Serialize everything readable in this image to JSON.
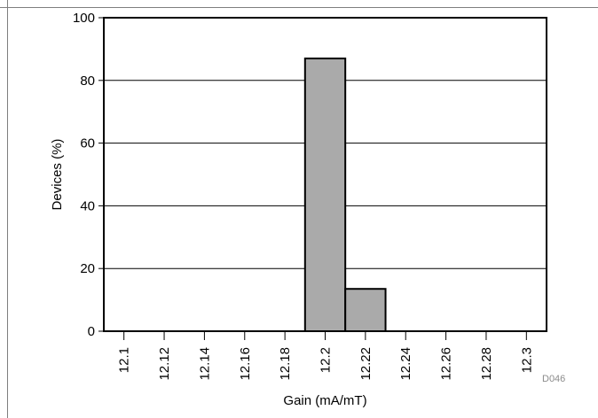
{
  "chart_data": {
    "type": "bar",
    "x": [
      12.1,
      12.12,
      12.14,
      12.16,
      12.18,
      12.2,
      12.22,
      12.24,
      12.26,
      12.28,
      12.3
    ],
    "x_tick_labels": [
      "12.1",
      "12.12",
      "12.14",
      "12.16",
      "12.18",
      "12.2",
      "12.22",
      "12.24",
      "12.26",
      "12.28",
      "12.3"
    ],
    "bins": [
      {
        "start": 12.19,
        "end": 12.21,
        "value": 87
      },
      {
        "start": 12.21,
        "end": 12.23,
        "value": 13.5
      }
    ],
    "xlim": [
      12.09,
      12.31
    ],
    "ylim": [
      0,
      100
    ],
    "y_ticks": [
      0,
      20,
      40,
      60,
      80,
      100
    ],
    "y_tick_labels": [
      "0",
      "20",
      "40",
      "60",
      "80",
      "100"
    ],
    "xlabel": "Gain (mA/mT)",
    "ylabel": "Devices (%)",
    "grid": {
      "horizontal": true,
      "vertical": false
    },
    "bar_color": "#aaaaaa",
    "edge_color": "#000000",
    "grid_color": "#000000"
  },
  "figure_code": "D046"
}
